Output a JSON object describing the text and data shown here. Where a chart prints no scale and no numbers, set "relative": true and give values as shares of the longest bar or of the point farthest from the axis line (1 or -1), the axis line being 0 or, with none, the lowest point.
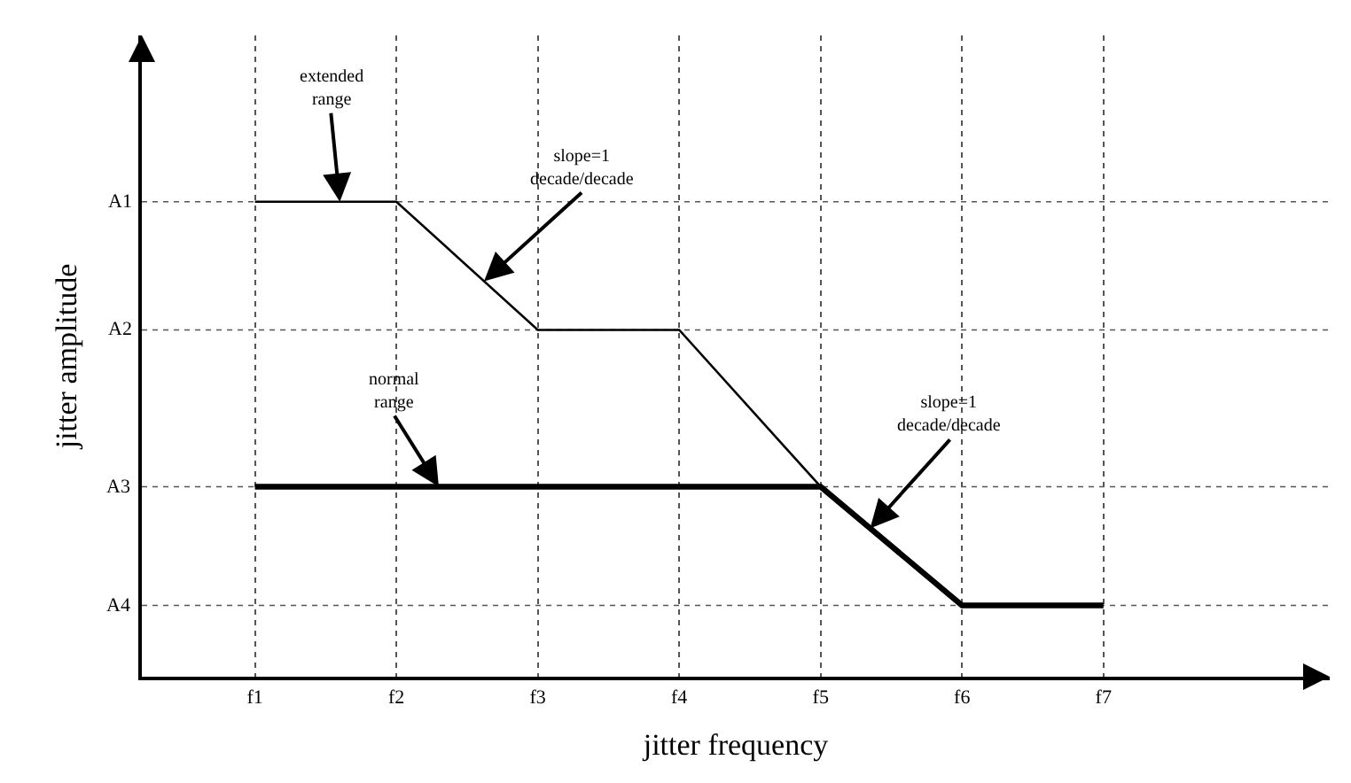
{
  "chart_data": {
    "type": "line",
    "xlabel": "jitter frequency",
    "ylabel": "jitter amplitude",
    "categories": [
      "f1",
      "f2",
      "f3",
      "f4",
      "f5",
      "f6",
      "f7"
    ],
    "relative": true,
    "grid": "x",
    "marker": "none",
    "series": [
      {
        "color": "#000000",
        "values": [
          1,
          1,
          0.73,
          0.73,
          0.4,
          null,
          null
        ]
      },
      {
        "color": "#000000",
        "values": [
          0.4,
          0.4,
          0.4,
          0.4,
          0.4,
          0.15,
          0.15
        ]
      }
    ],
    "ref_lines": [
      {
        "axis": "y",
        "value": 1,
        "label": "A1",
        "line_style": "dotted"
      },
      {
        "axis": "y",
        "value": 0.73,
        "label": "A2",
        "line_style": "dotted"
      },
      {
        "axis": "y",
        "value": 0.4,
        "label": "A3",
        "line_style": "dotted"
      },
      {
        "axis": "y",
        "value": 0.15,
        "label": "A4",
        "line_style": "dotted"
      }
    ],
    "annotations": [
      "extended range",
      "slope=1 decade/decade",
      "normal range",
      "slope=1 decade/decade"
    ]
  }
}
